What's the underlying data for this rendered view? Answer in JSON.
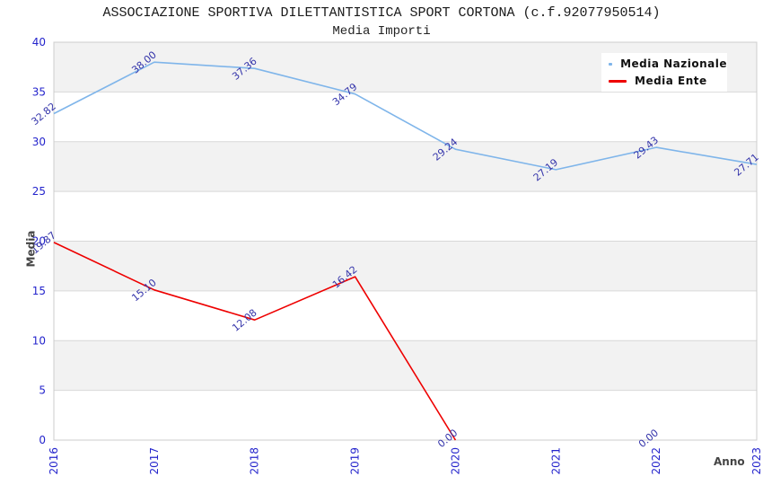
{
  "header": {
    "title": "ASSOCIAZIONE SPORTIVA DILETTANTISTICA SPORT CORTONA (c.f.92077950514)",
    "subtitle": "Media Importi"
  },
  "legend": {
    "items": [
      {
        "label": "Media Nazionale",
        "color": "#7fb5ea"
      },
      {
        "label": "Media Ente",
        "color": "#ee0000"
      }
    ]
  },
  "chart_data": {
    "type": "line",
    "x": [
      "2016",
      "2017",
      "2018",
      "2019",
      "2020",
      "2021",
      "2022",
      "2023"
    ],
    "series": [
      {
        "name": "Media Nazionale",
        "color": "#7fb5ea",
        "values": [
          32.82,
          38.0,
          37.36,
          34.79,
          29.24,
          27.19,
          29.43,
          27.71
        ]
      },
      {
        "name": "Media Ente",
        "color": "#ee0000",
        "values": [
          19.87,
          15.1,
          12.08,
          16.42,
          0.0,
          null,
          0.0,
          null
        ]
      }
    ],
    "title": "ASSOCIAZIONE SPORTIVA DILETTANTISTICA SPORT CORTONA (c.f.92077950514)",
    "subtitle": "Media Importi",
    "xlabel": "Anno",
    "ylabel": "Media",
    "ylim": [
      0,
      40
    ],
    "ytick_step": 5,
    "value_label_decimals": 2,
    "grid": "horizontal-bands-alternating",
    "legend_position": "top-right",
    "colors": {
      "tick_label": "#2424cc",
      "value_label": "#3333aa",
      "band": "#f2f2f2",
      "grid_line": "#d8d8d8",
      "frame": "#cccccc",
      "axis_title": "#444444"
    }
  }
}
